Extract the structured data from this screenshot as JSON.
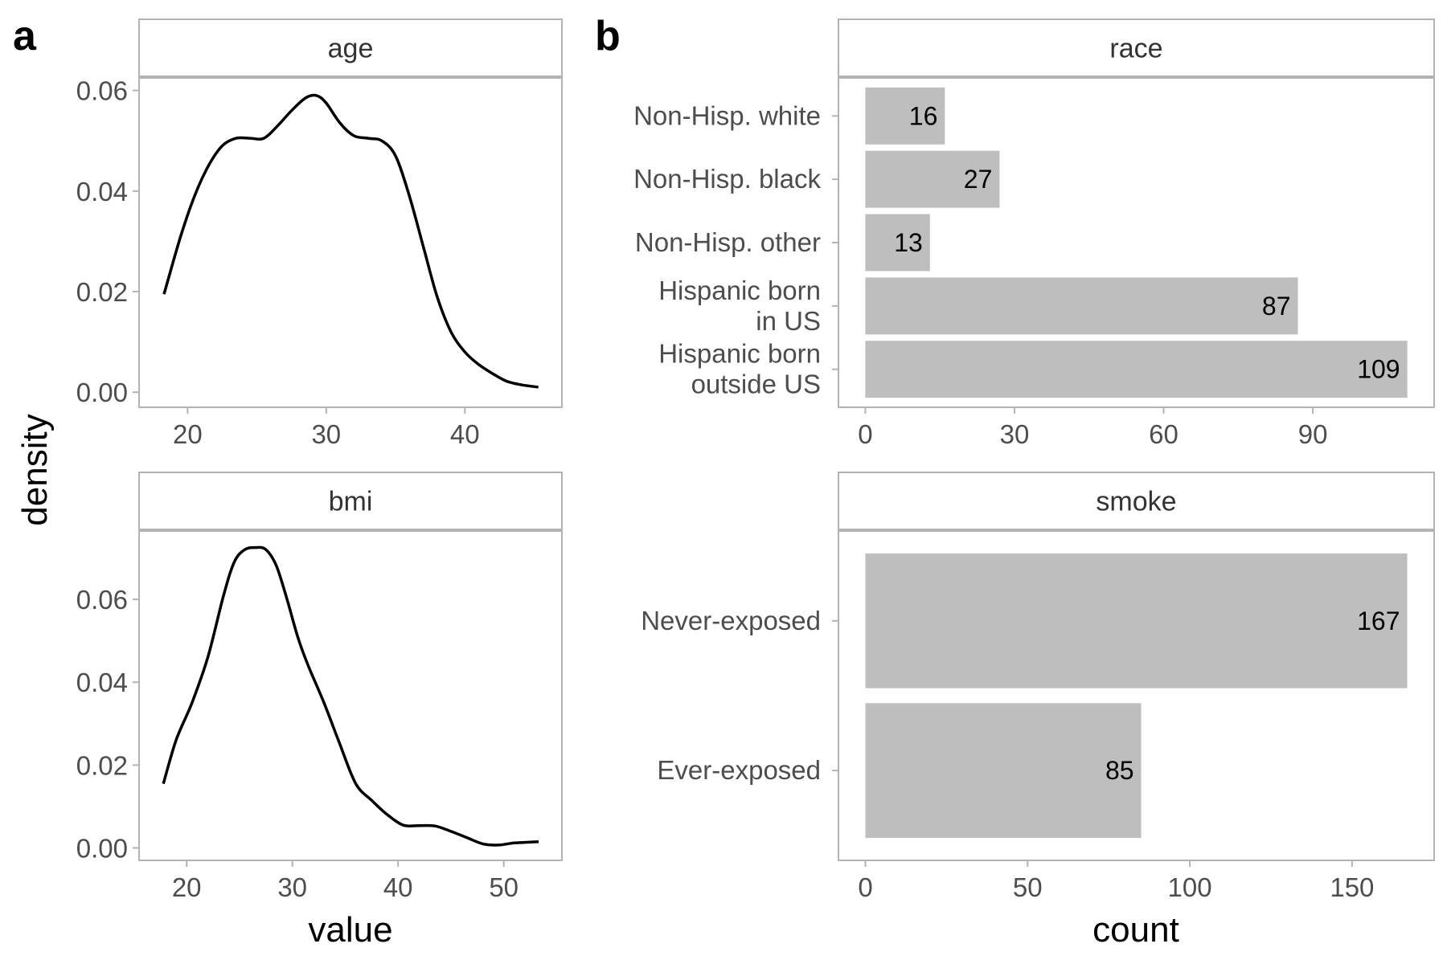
{
  "figure": {
    "panel_a_tag": "a",
    "panel_b_tag": "b",
    "panel_a_ylabel": "density",
    "panel_a_xlabel": "value",
    "panel_b_xlabel": "count"
  },
  "colors": {
    "line": "#000000",
    "bar": "#bebebe",
    "panel_border": "#b3b3b3",
    "strip_fill": "#ffffff",
    "tick_text": "#4d4d4d"
  },
  "chart_data": [
    {
      "type": "line",
      "facet": "age",
      "xlim": [
        16.5,
        47
      ],
      "ylim": [
        -0.003,
        0.0625
      ],
      "xticks": [
        20,
        30,
        40
      ],
      "yticks": [
        0.0,
        0.02,
        0.04,
        0.06
      ],
      "ytick_labels": [
        "0.00",
        "0.02",
        "0.04",
        "0.06"
      ],
      "grid": false,
      "x": [
        18.3,
        19.5,
        20.5,
        21.5,
        22.5,
        23.5,
        24.5,
        25.5,
        26.5,
        27.5,
        28.5,
        29.3,
        30.0,
        31.0,
        32.0,
        33.0,
        34.0,
        35.0,
        36.0,
        37.0,
        38.0,
        39.0,
        40.0,
        41.0,
        42.0,
        43.0,
        44.0,
        45.3
      ],
      "y": [
        0.0195,
        0.031,
        0.039,
        0.045,
        0.049,
        0.0505,
        0.0505,
        0.0505,
        0.053,
        0.056,
        0.0585,
        0.059,
        0.0575,
        0.0535,
        0.051,
        0.0505,
        0.05,
        0.047,
        0.039,
        0.029,
        0.019,
        0.012,
        0.008,
        0.0055,
        0.0037,
        0.0022,
        0.0015,
        0.001
      ]
    },
    {
      "type": "line",
      "facet": "bmi",
      "xlim": [
        15.5,
        55.5
      ],
      "ylim": [
        -0.003,
        0.0765
      ],
      "xticks": [
        20,
        30,
        40,
        50
      ],
      "yticks": [
        0.0,
        0.02,
        0.04,
        0.06
      ],
      "ytick_labels": [
        "0.00",
        "0.02",
        "0.04",
        "0.06"
      ],
      "grid": false,
      "x": [
        17.8,
        19.0,
        20.5,
        22.0,
        23.5,
        24.5,
        25.5,
        26.5,
        27.5,
        28.5,
        29.5,
        30.5,
        31.5,
        33.0,
        34.5,
        36.0,
        37.5,
        39.0,
        40.5,
        42.0,
        43.5,
        45.0,
        46.5,
        48.0,
        49.5,
        51.0,
        53.3
      ],
      "y": [
        0.0155,
        0.026,
        0.035,
        0.046,
        0.061,
        0.069,
        0.072,
        0.0725,
        0.072,
        0.068,
        0.06,
        0.051,
        0.044,
        0.035,
        0.025,
        0.0155,
        0.0115,
        0.008,
        0.0055,
        0.0054,
        0.0053,
        0.004,
        0.0025,
        0.001,
        0.0007,
        0.0012,
        0.0015
      ]
    },
    {
      "type": "bar",
      "orientation": "horizontal",
      "facet": "race",
      "categories": [
        "Non-Hisp. white",
        "Non-Hisp. black",
        "Non-Hisp. other",
        "Hispanic born\nin US",
        "Hispanic born\noutside US"
      ],
      "values": [
        16,
        27,
        13,
        87,
        109
      ],
      "xlim": [
        -5.4,
        114.4
      ],
      "xticks": [
        0,
        30,
        60,
        90
      ],
      "grid": false
    },
    {
      "type": "bar",
      "orientation": "horizontal",
      "facet": "smoke",
      "categories": [
        "Never-exposed",
        "Ever-exposed"
      ],
      "values": [
        167,
        85
      ],
      "xlim": [
        -8.3,
        175.3
      ],
      "xticks": [
        0,
        50,
        100,
        150
      ],
      "grid": false
    }
  ]
}
